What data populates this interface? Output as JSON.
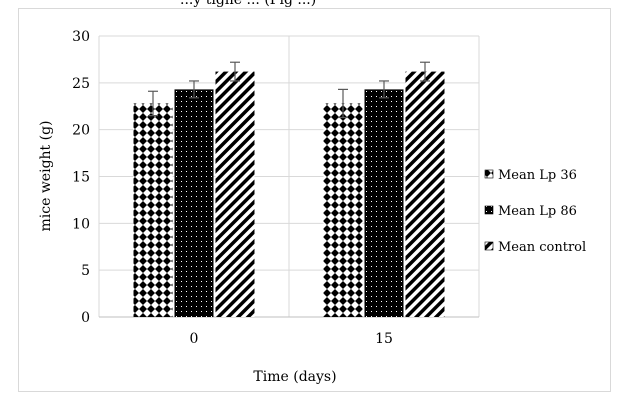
{
  "page_header_fragment": "...y tighe ... (Fig ...)",
  "chart_data": {
    "type": "bar",
    "title": "",
    "xlabel": "Time (days)",
    "ylabel": "mice weight  (g)",
    "ylim": [
      0,
      30
    ],
    "yticks": [
      0,
      5,
      10,
      15,
      20,
      25,
      30
    ],
    "grid": true,
    "legend_position": "right",
    "categories": [
      "0",
      "15"
    ],
    "series": [
      {
        "name": "Mean Lp 36",
        "pattern": "diamonds",
        "values": [
          22.8,
          22.8
        ],
        "error": [
          1.3,
          1.5
        ]
      },
      {
        "name": "Mean Lp 86",
        "pattern": "dots",
        "values": [
          24.3,
          24.3
        ],
        "error": [
          0.9,
          0.9
        ]
      },
      {
        "name": "Mean control",
        "pattern": "stripes",
        "values": [
          26.2,
          26.2
        ],
        "error": [
          1.0,
          1.0
        ]
      }
    ],
    "colors": {
      "bar": "#000000",
      "grid": "#d9d9d9",
      "error_bar": "#595959",
      "axis": "#bfbfbf"
    }
  }
}
